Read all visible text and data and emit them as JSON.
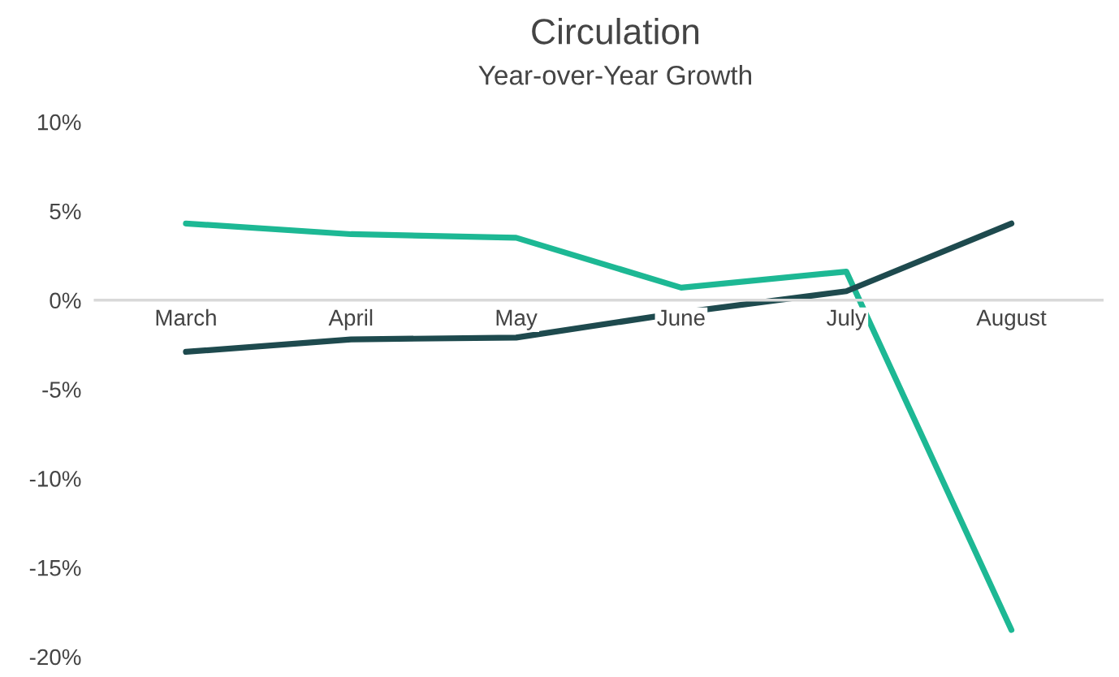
{
  "chart_data": {
    "type": "line",
    "title": "Circulation",
    "subtitle": "Year-over-Year Growth",
    "categories": [
      "March",
      "April",
      "May",
      "June",
      "July",
      "August"
    ],
    "series": [
      {
        "color": "#1db894",
        "values": [
          4.3,
          3.7,
          3.5,
          0.7,
          1.6,
          -18.5
        ]
      },
      {
        "color": "#1e4a4e",
        "values": [
          -2.9,
          -2.2,
          -2.1,
          -0.7,
          0.5,
          4.3
        ]
      }
    ],
    "ylim": [
      -20,
      10
    ],
    "yticks": [
      {
        "value": -20,
        "label": "-20%"
      },
      {
        "value": -15,
        "label": "-15%"
      },
      {
        "value": -10,
        "label": "-10%"
      },
      {
        "value": -5,
        "label": "-5%"
      },
      {
        "value": 0,
        "label": "0%"
      },
      {
        "value": 5,
        "label": "5%"
      },
      {
        "value": 10,
        "label": "10%"
      }
    ],
    "grid": false
  }
}
